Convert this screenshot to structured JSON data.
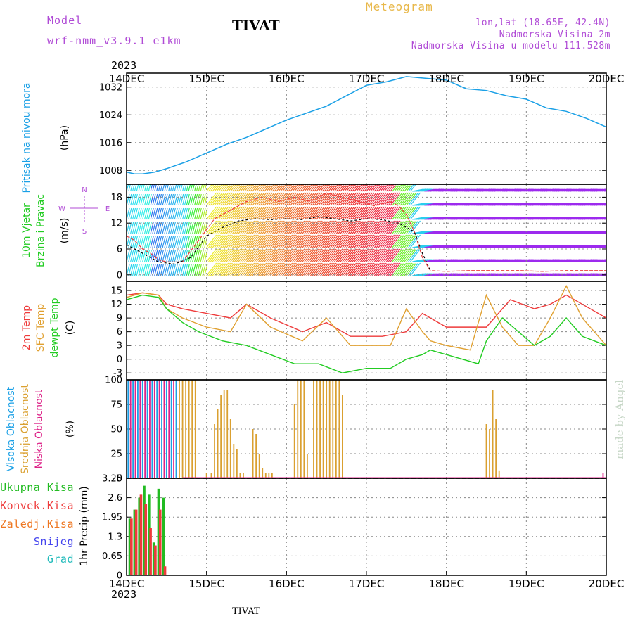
{
  "header": {
    "model_label": "Model",
    "model_name": "wrf-nmm_v3.9.1 e1km",
    "station": "TIVAT",
    "meteogram": "Meteogram",
    "lonlat": "lon,lat (18.65E, 42.4N)",
    "elevation": "Nadmorska Visina 2m",
    "model_elevation": "Nadmorska Visina u modelu 111.528m",
    "year_top": "2023",
    "year_bottom": "2023",
    "footer_station": "TIVAT",
    "made_by": "made by Angel"
  },
  "colors": {
    "pressure": "#1aa0e6",
    "temp2m": "#ee3b3b",
    "sfc_temp": "#e0a030",
    "dewpoint": "#22cc22",
    "cloud_high": "#1aa0e6",
    "cloud_mid": "#daa030",
    "cloud_low": "#dd2288",
    "precip_total": "#22bb22",
    "precip_conv": "#ee3b3b",
    "precip_freezing": "#ee7722",
    "snow": "#4444ee",
    "hail": "#22bbbb",
    "wind_speed": "#ee3b3b",
    "wind_gust": "#000000",
    "purple": "#b04bd6"
  },
  "chart_data": [
    {
      "panel": "pressure",
      "type": "line",
      "title": "Pritisak na nivou mora",
      "ylabel": "(hPa)",
      "x_categories": [
        "14DEC",
        "15DEC",
        "16DEC",
        "17DEC",
        "18DEC",
        "19DEC",
        "20DEC"
      ],
      "yticks": [
        "1008",
        "1016",
        "1024",
        "1032"
      ],
      "ylim": [
        1004,
        1036
      ],
      "series": [
        {
          "x": [
            0,
            0.1,
            0.2,
            0.35,
            0.5,
            0.75,
            1.0,
            1.25,
            1.5,
            1.75,
            2.0,
            2.25,
            2.5,
            2.75,
            3.0,
            3.25,
            3.5,
            3.75,
            4.0,
            4.25,
            4.5,
            4.75,
            5.0,
            5.25,
            5.5,
            5.75,
            6.0
          ],
          "y": [
            1007.5,
            1007,
            1007,
            1007.5,
            1008.5,
            1010.5,
            1013,
            1015.5,
            1017.5,
            1020,
            1022.5,
            1024.5,
            1026.5,
            1029.5,
            1032.5,
            1033.5,
            1035,
            1034.5,
            1034,
            1031.5,
            1031,
            1029.5,
            1028.5,
            1026,
            1025,
            1023,
            1020.5
          ]
        }
      ]
    },
    {
      "panel": "wind",
      "type": "line",
      "title_lines": [
        "10m Vjetar",
        "Brzina i Pravac"
      ],
      "ylabel": "(m/s)",
      "compass": [
        "W",
        "E",
        "N",
        "S"
      ],
      "yticks": [
        "0",
        "6",
        "12",
        "18"
      ],
      "ylim": [
        -1.5,
        21
      ],
      "series": [
        {
          "name": "speed",
          "x": [
            0,
            0.1,
            0.2,
            0.3,
            0.4,
            0.5,
            0.7,
            0.9,
            1.1,
            1.3,
            1.5,
            1.7,
            1.9,
            2.1,
            2.3,
            2.5,
            2.7,
            2.9,
            3.1,
            3.3,
            3.4,
            3.5,
            3.6,
            3.7,
            3.8,
            4.0,
            4.3,
            4.6,
            4.9,
            5.2,
            5.5,
            5.8,
            6.0
          ],
          "y": [
            9,
            8,
            6,
            5,
            3.5,
            3,
            3,
            8,
            13,
            15,
            17,
            18,
            17,
            18,
            17,
            19,
            18,
            17,
            16,
            17,
            16,
            14,
            10,
            4,
            1,
            0.8,
            1,
            1,
            1,
            0.8,
            1,
            1,
            1
          ]
        },
        {
          "name": "gust",
          "x": [
            0,
            0.2,
            0.4,
            0.6,
            0.8,
            1.0,
            1.2,
            1.4,
            1.6,
            1.8,
            2.0,
            2.2,
            2.4,
            2.6,
            2.8,
            3.0,
            3.2,
            3.4,
            3.6,
            3.7,
            3.8
          ],
          "y": [
            7,
            5,
            3,
            2.5,
            4,
            9,
            11,
            12.5,
            13,
            12.8,
            13,
            12.8,
            13.5,
            13,
            12.5,
            13,
            12.8,
            12,
            10,
            5,
            1
          ]
        }
      ]
    },
    {
      "panel": "temperature",
      "type": "line",
      "title_lines": [
        "2m Temp",
        "SFC Temp",
        "dewpt Temp"
      ],
      "ylabel": "(C)",
      "yticks": [
        "-3",
        "0",
        "3",
        "6",
        "9",
        "12",
        "15"
      ],
      "ylim": [
        -4.5,
        17
      ],
      "series": [
        {
          "name": "2m Temp",
          "x": [
            0,
            0.2,
            0.4,
            0.5,
            0.7,
            1.0,
            1.3,
            1.5,
            1.8,
            2.2,
            2.5,
            2.8,
            3.2,
            3.5,
            3.7,
            4.0,
            4.3,
            4.5,
            4.8,
            5.1,
            5.3,
            5.5,
            5.8,
            6.0
          ],
          "y": [
            14,
            14.5,
            14,
            12,
            11,
            10,
            9,
            12,
            9,
            6,
            8,
            5,
            5,
            6,
            10,
            7,
            7,
            7,
            13,
            11,
            12,
            14,
            11,
            9
          ]
        },
        {
          "name": "SFC Temp",
          "x": [
            0,
            0.2,
            0.4,
            0.5,
            0.7,
            1.0,
            1.3,
            1.5,
            1.8,
            2.2,
            2.5,
            2.8,
            3.0,
            3.3,
            3.5,
            3.7,
            3.8,
            4.0,
            4.3,
            4.5,
            4.7,
            4.9,
            5.1,
            5.3,
            5.5,
            5.7,
            6.0
          ],
          "y": [
            13.5,
            14.5,
            14,
            11,
            9,
            7,
            6,
            12,
            7,
            4,
            9,
            3,
            3,
            3,
            11,
            6,
            4,
            3,
            2,
            14,
            7,
            3,
            3,
            9,
            16,
            9,
            3
          ]
        },
        {
          "name": "dewpt Temp",
          "x": [
            0,
            0.2,
            0.4,
            0.5,
            0.7,
            0.9,
            1.2,
            1.5,
            1.8,
            2.1,
            2.4,
            2.7,
            3.0,
            3.3,
            3.5,
            3.7,
            3.8,
            4.0,
            4.2,
            4.4,
            4.5,
            4.7,
            4.9,
            5.1,
            5.3,
            5.5,
            5.7,
            6.0
          ],
          "y": [
            13,
            14,
            13.5,
            11,
            8,
            6,
            4,
            3,
            1,
            -1,
            -1,
            -3,
            -2,
            -2,
            0,
            1,
            2,
            1,
            0,
            -1,
            4,
            9,
            6,
            3,
            5,
            9,
            5,
            3
          ]
        }
      ]
    },
    {
      "panel": "clouds",
      "type": "bar",
      "title_lines": [
        "Visoka Oblacnost",
        "Srednja Oblacnost",
        "Niska Oblacnost"
      ],
      "ylabel": "(%)",
      "yticks": [
        "0",
        "25",
        "50",
        "75",
        "100"
      ],
      "ylim": [
        0,
        100
      ],
      "series": [
        {
          "name": "Visoka Oblacnost",
          "x": [
            0.02,
            0.08,
            0.14,
            0.2,
            0.26,
            0.32,
            0.38,
            0.44,
            0.5,
            0.56,
            0.62
          ],
          "y": [
            100,
            100,
            100,
            100,
            100,
            100,
            100,
            100,
            100,
            100,
            100
          ]
        },
        {
          "name": "Niska Oblacnost",
          "x": [
            0.05,
            0.11,
            0.17,
            0.23,
            0.29,
            0.35,
            0.41,
            0.47,
            0.53,
            0.59,
            5.96
          ],
          "y": [
            100,
            100,
            100,
            100,
            100,
            100,
            100,
            100,
            100,
            100,
            5
          ]
        },
        {
          "name": "Srednja Oblacnost",
          "x": [
            0.66,
            0.7,
            0.74,
            0.78,
            0.82,
            0.86,
            1.0,
            1.06,
            1.1,
            1.14,
            1.18,
            1.22,
            1.26,
            1.3,
            1.34,
            1.38,
            1.42,
            1.46,
            1.58,
            1.62,
            1.66,
            1.7,
            1.74,
            1.78,
            1.82,
            2.1,
            2.14,
            2.18,
            2.22,
            2.26,
            2.34,
            2.38,
            2.42,
            2.46,
            2.5,
            2.54,
            2.58,
            2.62,
            2.66,
            2.7,
            4.5,
            4.54,
            4.58,
            4.62,
            4.66
          ],
          "y": [
            100,
            100,
            100,
            100,
            100,
            100,
            5,
            5,
            55,
            70,
            85,
            90,
            90,
            60,
            35,
            30,
            5,
            5,
            50,
            45,
            25,
            10,
            5,
            5,
            5,
            75,
            100,
            100,
            100,
            25,
            100,
            100,
            100,
            100,
            100,
            100,
            100,
            100,
            100,
            85,
            55,
            50,
            90,
            60,
            8
          ]
        }
      ]
    },
    {
      "panel": "precip",
      "type": "bar",
      "ylabel": "1hr Precip (mm)",
      "legend": [
        "Ukupna Kisa",
        "Konvek.Kisa",
        "Zaledj.Kisa",
        "Snijeg",
        "Grad"
      ],
      "yticks": [
        "0",
        "0.65",
        "1.3",
        "1.95",
        "2.6",
        "3.25"
      ],
      "ylim": [
        0,
        3.25
      ],
      "series": [
        {
          "name": "Ukupna Kisa",
          "x": [
            0.04,
            0.1,
            0.16,
            0.22,
            0.28,
            0.34,
            0.4,
            0.46
          ],
          "y": [
            1.9,
            2.2,
            2.6,
            3.0,
            2.7,
            1.1,
            2.9,
            2.6
          ]
        },
        {
          "name": "Konvek.Kisa",
          "x": [
            0.06,
            0.12,
            0.18,
            0.24,
            0.3,
            0.36,
            0.42,
            0.48
          ],
          "y": [
            1.9,
            2.2,
            2.7,
            2.4,
            1.6,
            1.0,
            2.2,
            0.3
          ]
        }
      ]
    }
  ]
}
